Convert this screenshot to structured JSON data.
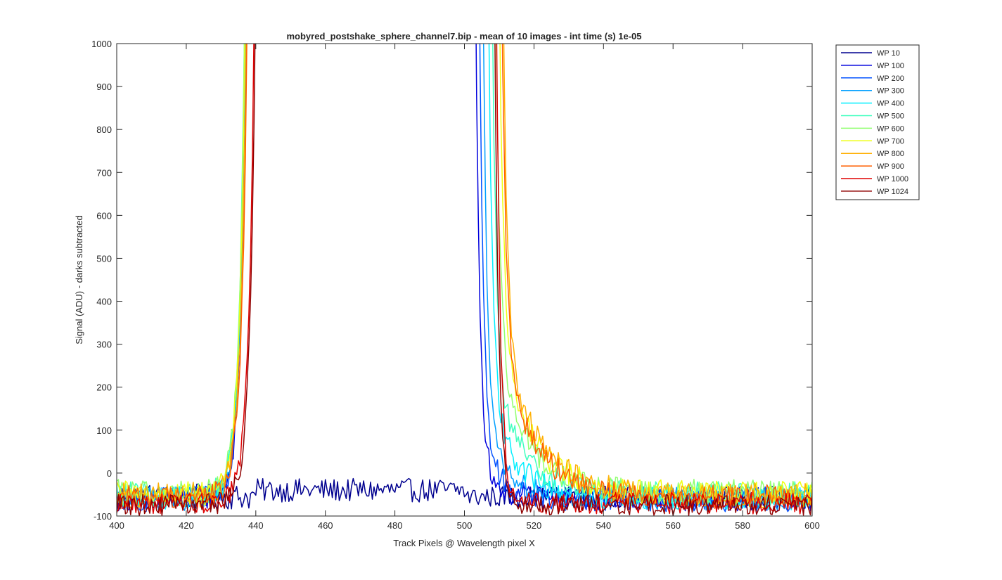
{
  "chart_data": {
    "type": "line",
    "title": "mobyred_postshake_sphere_channel7.bip - mean of 10 images - int time (s) 1e-05",
    "xlabel": "Track Pixels @ Wavelength pixel X",
    "ylabel": "Signal (ADU) - darks subtracted",
    "xlim": [
      400,
      600
    ],
    "ylim": [
      -100,
      1000
    ],
    "x_ticks": [
      400,
      420,
      440,
      460,
      480,
      500,
      520,
      540,
      560,
      580,
      600
    ],
    "y_ticks": [
      -100,
      0,
      100,
      200,
      300,
      400,
      500,
      600,
      700,
      800,
      900,
      1000
    ],
    "x_tick_labels": [
      "400",
      "420",
      "440",
      "460",
      "480",
      "500",
      "520",
      "540",
      "560",
      "580",
      "600"
    ],
    "y_tick_labels": [
      "-100",
      "0",
      "100",
      "200",
      "300",
      "400",
      "500",
      "600",
      "700",
      "800",
      "900",
      "1000"
    ],
    "legend_position": "outside-top-right",
    "grid": false,
    "series": [
      {
        "name": "WP 10",
        "color": "#00008f",
        "rise_x": 999,
        "fall_x": 500.5,
        "tail_amp": 100,
        "tail_decay": 4,
        "base": -55,
        "noise": 25
      },
      {
        "name": "WP 100",
        "color": "#0000dd",
        "rise_x": 439,
        "fall_x": 502,
        "tail_amp": 120,
        "tail_decay": 5,
        "base": -60,
        "noise": 28
      },
      {
        "name": "WP 200",
        "color": "#0050ff",
        "rise_x": 438.8,
        "fall_x": 503,
        "tail_amp": 160,
        "tail_decay": 6,
        "base": -62,
        "noise": 28
      },
      {
        "name": "WP 300",
        "color": "#009fff",
        "rise_x": 438.7,
        "fall_x": 504,
        "tail_amp": 220,
        "tail_decay": 7,
        "base": -60,
        "noise": 28
      },
      {
        "name": "WP 400",
        "color": "#00efff",
        "rise_x": 438.6,
        "fall_x": 505.5,
        "tail_amp": 280,
        "tail_decay": 8,
        "base": -58,
        "noise": 28
      },
      {
        "name": "WP 500",
        "color": "#40ffbf",
        "rise_x": 438.5,
        "fall_x": 506.5,
        "tail_amp": 320,
        "tail_decay": 9,
        "base": -50,
        "noise": 30
      },
      {
        "name": "WP 600",
        "color": "#90ff6f",
        "rise_x": 438.5,
        "fall_x": 507.5,
        "tail_amp": 360,
        "tail_decay": 9.5,
        "base": -45,
        "noise": 30
      },
      {
        "name": "WP 700",
        "color": "#efff10",
        "rise_x": 438.6,
        "fall_x": 508.5,
        "tail_amp": 400,
        "tail_decay": 10,
        "base": -48,
        "noise": 30
      },
      {
        "name": "WP 800",
        "color": "#ffaf00",
        "rise_x": 439,
        "fall_x": 509.5,
        "tail_amp": 430,
        "tail_decay": 10,
        "base": -52,
        "noise": 30
      },
      {
        "name": "WP 900",
        "color": "#ff5f00",
        "rise_x": 439.2,
        "fall_x": 509.2,
        "tail_amp": 400,
        "tail_decay": 9.5,
        "base": -55,
        "noise": 28
      },
      {
        "name": "WP 1000",
        "color": "#df0000",
        "rise_x": 441.2,
        "fall_x": 508,
        "tail_amp": 0,
        "tail_decay": 5,
        "base": -70,
        "noise": 25
      },
      {
        "name": "WP 1024",
        "color": "#8f0000",
        "rise_x": 441.5,
        "fall_x": 507.5,
        "tail_amp": 0,
        "tail_decay": 5,
        "base": -75,
        "noise": 25
      }
    ]
  }
}
